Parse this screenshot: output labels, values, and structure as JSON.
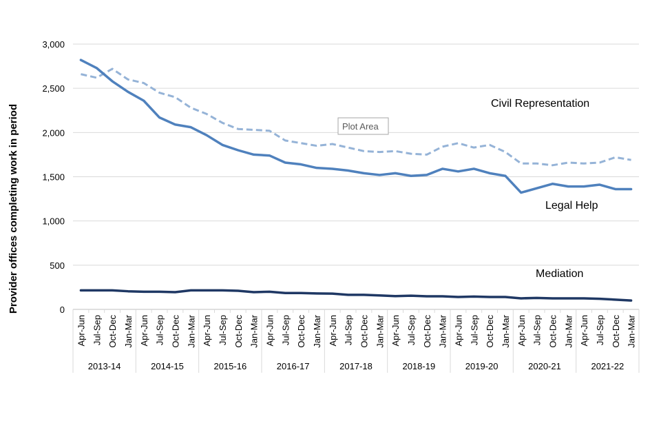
{
  "chart_data": {
    "type": "line",
    "title": "",
    "xlabel": "",
    "ylabel": "Provider offices completing work in period",
    "ylim": [
      0,
      3000
    ],
    "yticks": [
      0,
      500,
      1000,
      1500,
      2000,
      2500,
      3000
    ],
    "ytick_labels": [
      "0",
      "500",
      "1,000",
      "1,500",
      "2,000",
      "2,500",
      "3,000"
    ],
    "grid": true,
    "categories": [
      "Apr-Jun",
      "Jul-Sep",
      "Oct-Dec",
      "Jan-Mar",
      "Apr-Jun",
      "Jul-Sep",
      "Oct-Dec",
      "Jan-Mar",
      "Apr-Jun",
      "Jul-Sep",
      "Oct-Dec",
      "Jan-Mar",
      "Apr-Jun",
      "Jul-Sep",
      "Oct-Dec",
      "Jan-Mar",
      "Apr-Jun",
      "Jul-Sep",
      "Oct-Dec",
      "Jan-Mar",
      "Apr-Jun",
      "Jul-Sep",
      "Oct-Dec",
      "Jan-Mar",
      "Apr-Jun",
      "Jul-Sep",
      "Oct-Dec",
      "Jan-Mar",
      "Apr-Jun",
      "Jul-Sep",
      "Oct-Dec",
      "Jan-Mar",
      "Apr-Jun",
      "Jul-Sep",
      "Oct-Dec",
      "Jan-Mar"
    ],
    "groups": [
      "2013-14",
      "2014-15",
      "2015-16",
      "2016-17",
      "2017-18",
      "2018-19",
      "2019-20",
      "2020-21",
      "2021-22"
    ],
    "series": [
      {
        "name": "Civil Representation",
        "color": "#95b3d7",
        "dash": true,
        "width": 3,
        "values": [
          2660,
          2620,
          2720,
          2600,
          2560,
          2450,
          2400,
          2280,
          2210,
          2110,
          2040,
          2030,
          2020,
          1910,
          1880,
          1850,
          1870,
          1830,
          1790,
          1780,
          1790,
          1760,
          1750,
          1840,
          1880,
          1830,
          1860,
          1780,
          1650,
          1650,
          1630,
          1660,
          1650,
          1660,
          1720,
          1690
        ]
      },
      {
        "name": "Legal Help",
        "color": "#4f81bd",
        "dash": false,
        "width": 3.5,
        "values": [
          2820,
          2730,
          2580,
          2460,
          2360,
          2170,
          2090,
          2060,
          1970,
          1860,
          1800,
          1750,
          1740,
          1660,
          1640,
          1600,
          1590,
          1570,
          1540,
          1520,
          1540,
          1510,
          1520,
          1590,
          1560,
          1590,
          1540,
          1510,
          1320,
          1370,
          1420,
          1390,
          1390,
          1410,
          1360,
          1360
        ]
      },
      {
        "name": "Mediation",
        "color": "#1f3864",
        "dash": false,
        "width": 3.5,
        "values": [
          215,
          215,
          215,
          205,
          200,
          200,
          195,
          215,
          215,
          215,
          210,
          195,
          200,
          185,
          185,
          180,
          178,
          165,
          165,
          158,
          150,
          155,
          148,
          148,
          140,
          145,
          140,
          140,
          125,
          130,
          125,
          125,
          125,
          120,
          110,
          100
        ]
      }
    ],
    "annotations": {
      "civil": "Civil Representation",
      "legal": "Legal Help",
      "mediation": "Mediation",
      "tooltip": "Plot Area"
    }
  }
}
